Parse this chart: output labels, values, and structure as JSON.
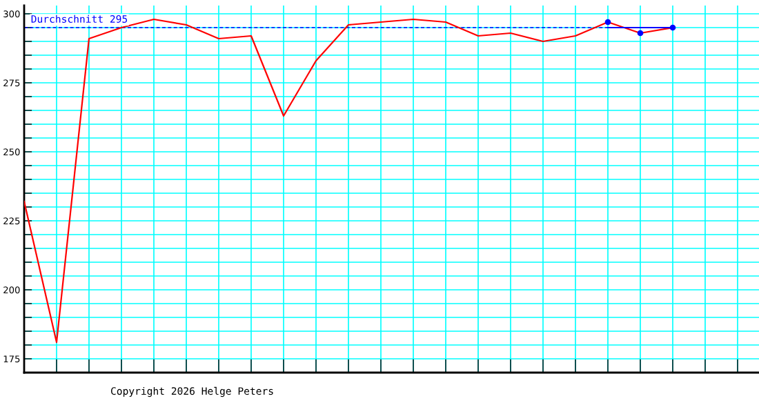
{
  "chart_data": {
    "type": "line",
    "categories": [
      null,
      null,
      null,
      null,
      null,
      null,
      null,
      null,
      null,
      null,
      null,
      null,
      null,
      null,
      null,
      null,
      null,
      null,
      null,
      null,
      null,
      null,
      null
    ],
    "series": [
      {
        "color": "#ff0000",
        "line_style": "solid",
        "marker": "none",
        "values": [
          232,
          181,
          291,
          295,
          298,
          296,
          291,
          292,
          263,
          283,
          296,
          297,
          298,
          297,
          292,
          293,
          290,
          292,
          297,
          293,
          295,
          null,
          null
        ]
      },
      {
        "type": "line",
        "color": "#0000ff",
        "line_style": "solid",
        "marker": "none",
        "values": [
          null,
          null,
          null,
          null,
          null,
          null,
          null,
          null,
          null,
          null,
          null,
          null,
          null,
          null,
          null,
          null,
          null,
          null,
          295,
          295,
          295,
          null,
          null
        ]
      },
      {
        "type": "scatter",
        "color": "#0000ff",
        "marker": "circle",
        "values": [
          null,
          null,
          null,
          null,
          null,
          null,
          null,
          null,
          null,
          null,
          null,
          null,
          null,
          null,
          null,
          null,
          null,
          null,
          297,
          293,
          295,
          null,
          null
        ]
      }
    ],
    "ylim": [
      170,
      303
    ],
    "yticks": [
      175,
      {
        "value": 180,
        "label": null
      },
      {
        "value": 185,
        "label": null
      },
      {
        "value": 190,
        "label": null
      },
      {
        "value": 195,
        "label": null
      },
      200,
      {
        "value": 205,
        "label": null
      },
      {
        "value": 210,
        "label": null
      },
      {
        "value": 215,
        "label": null
      },
      {
        "value": 220,
        "label": null
      },
      225,
      {
        "value": 230,
        "label": null
      },
      {
        "value": 235,
        "label": null
      },
      {
        "value": 240,
        "label": null
      },
      {
        "value": 245,
        "label": null
      },
      250,
      {
        "value": 255,
        "label": null
      },
      {
        "value": 260,
        "label": null
      },
      {
        "value": 265,
        "label": null
      },
      {
        "value": 270,
        "label": null
      },
      275,
      {
        "value": 280,
        "label": null
      },
      {
        "value": 285,
        "label": null
      },
      {
        "value": 290,
        "label": null
      },
      {
        "value": 295,
        "label": null
      },
      300
    ],
    "grid": true,
    "ref_lines": [
      {
        "axis": "y",
        "value": 295,
        "label": "Durchschnitt 295",
        "color": "#0000ff",
        "line_style": "dashed"
      }
    ],
    "annotations": [
      "Copyright 2026 Helge Peters"
    ]
  }
}
